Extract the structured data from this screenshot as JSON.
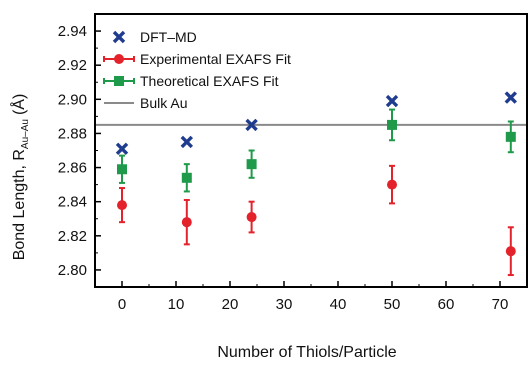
{
  "chart_data": {
    "type": "scatter",
    "xlabel": "Number of Thiols/Particle",
    "ylabel": "Bond Length, R",
    "ylabel_subscript": "Au–Au",
    "ylabel_unit": "(Å)",
    "xlim": [
      -5,
      75
    ],
    "ylim": [
      2.79,
      2.95
    ],
    "x_ticks": [
      0,
      10,
      20,
      30,
      40,
      50,
      60,
      70
    ],
    "y_ticks": [
      2.8,
      2.82,
      2.84,
      2.86,
      2.88,
      2.9,
      2.92,
      2.94
    ],
    "y_tick_labels": [
      "2.80",
      "2.82",
      "2.84",
      "2.86",
      "2.88",
      "2.90",
      "2.92",
      "2.94"
    ],
    "x_tick_labels": [
      "0",
      "10",
      "20",
      "30",
      "40",
      "50",
      "60",
      "70"
    ],
    "grid": false,
    "legend_position": "top-left",
    "series": [
      {
        "name": "DFT–MD",
        "marker": "x",
        "color": "#1f3c8f",
        "points": [
          {
            "x": 0,
            "y": 2.871
          },
          {
            "x": 12,
            "y": 2.875
          },
          {
            "x": 24,
            "y": 2.885
          },
          {
            "x": 50,
            "y": 2.899
          },
          {
            "x": 72,
            "y": 2.901
          }
        ]
      },
      {
        "name": "Experimental EXAFS Fit",
        "marker": "circle",
        "color": "#e3222b",
        "points": [
          {
            "x": 0,
            "y": 2.838,
            "err": 0.01
          },
          {
            "x": 12,
            "y": 2.828,
            "err": 0.013
          },
          {
            "x": 24,
            "y": 2.831,
            "err": 0.009
          },
          {
            "x": 50,
            "y": 2.85,
            "err": 0.011
          },
          {
            "x": 72,
            "y": 2.811,
            "err": 0.014
          }
        ]
      },
      {
        "name": "Theoretical EXAFS Fit",
        "marker": "square",
        "color": "#1f9a4a",
        "points": [
          {
            "x": 0,
            "y": 2.859,
            "err": 0.008
          },
          {
            "x": 12,
            "y": 2.854,
            "err": 0.008
          },
          {
            "x": 24,
            "y": 2.862,
            "err": 0.008
          },
          {
            "x": 50,
            "y": 2.885,
            "err": 0.009
          },
          {
            "x": 72,
            "y": 2.878,
            "err": 0.009
          }
        ]
      }
    ],
    "reference_lines": [
      {
        "name": "Bulk Au",
        "y": 2.885,
        "color": "#8a8a8a"
      }
    ]
  }
}
